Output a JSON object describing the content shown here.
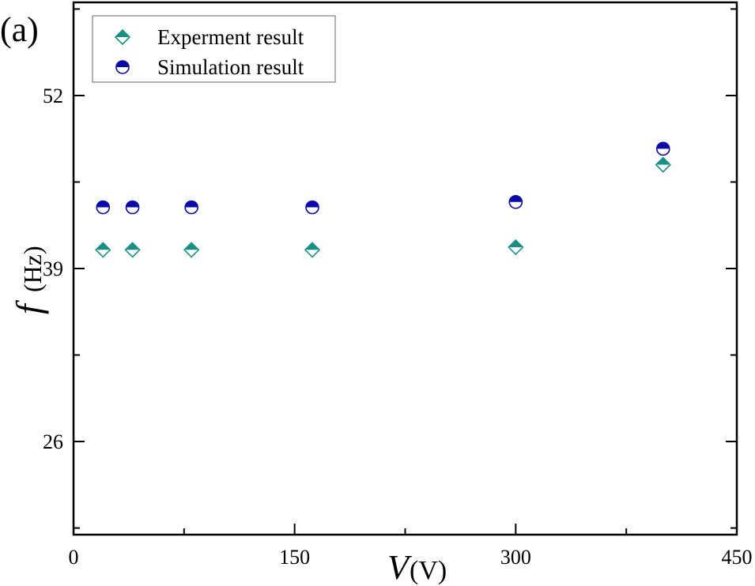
{
  "panel_label": "(a)",
  "chart_data": {
    "type": "scatter",
    "title": "",
    "xlabel_symbol": "V",
    "xlabel_unit": "(V)",
    "ylabel_symbol": "f",
    "ylabel_unit": "(Hz)",
    "xlim": [
      0,
      450
    ],
    "ylim": [
      19,
      59
    ],
    "xticks_major": [
      0,
      150,
      300,
      450
    ],
    "xticks_minor": [
      75,
      225,
      375
    ],
    "yticks_major": [
      26,
      39,
      52
    ],
    "yticks_minor": [
      19.5,
      32.5,
      45.5,
      58.5
    ],
    "legend_position": "top-left",
    "series": [
      {
        "name": "Experment result",
        "marker": "diamond-half",
        "color": "#1a8f86",
        "x": [
          20,
          40,
          80,
          162,
          300,
          400
        ],
        "y": [
          40.4,
          40.4,
          40.4,
          40.4,
          40.6,
          46.8
        ]
      },
      {
        "name": "Simulation result",
        "marker": "circle-half",
        "color": "#0a0aa8",
        "x": [
          20,
          40,
          80,
          162,
          300,
          400
        ],
        "y": [
          43.6,
          43.6,
          43.6,
          43.6,
          44.0,
          48.0
        ]
      }
    ]
  }
}
